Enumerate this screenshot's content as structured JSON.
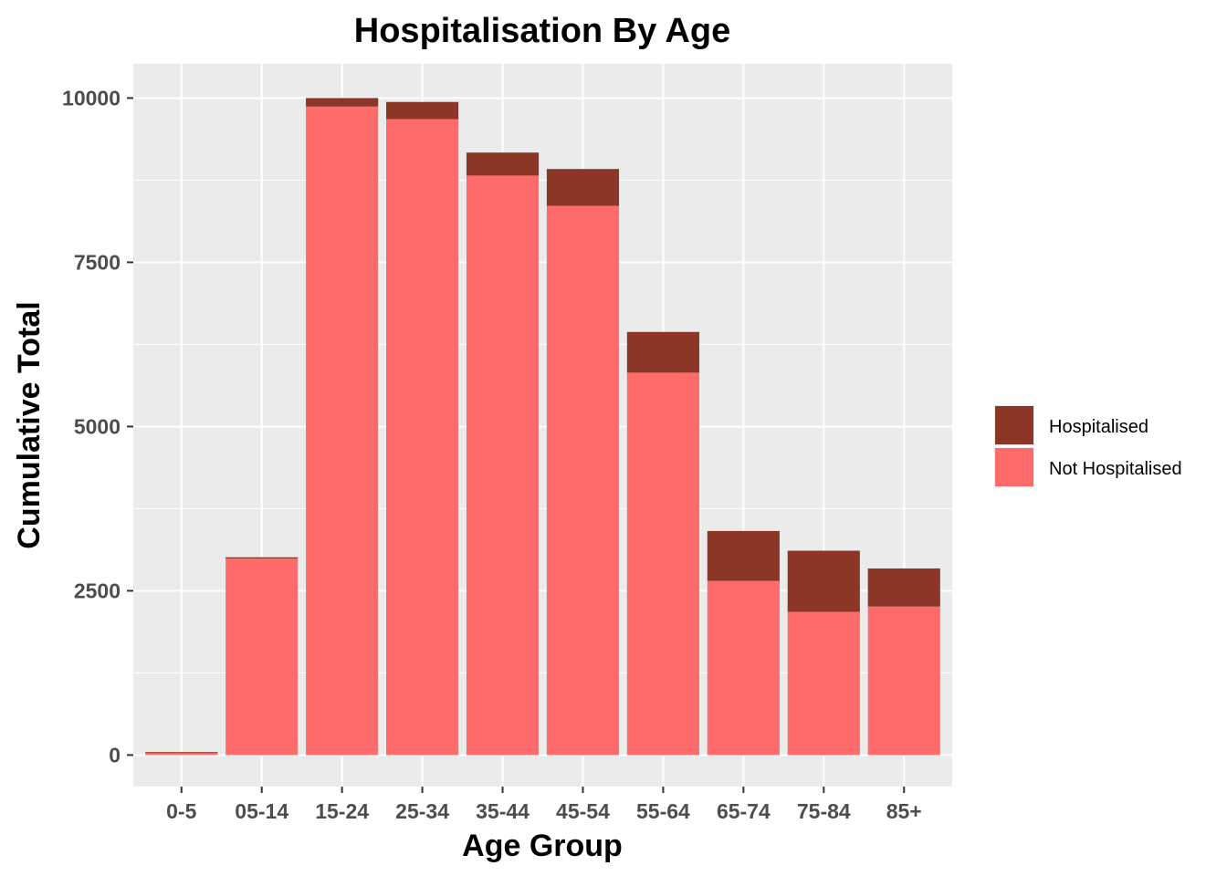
{
  "chart_data": {
    "type": "bar",
    "stacked": true,
    "title": "Hospitalisation By Age",
    "xlabel": "Age Group",
    "ylabel": "Cumulative Total",
    "categories": [
      "0-5",
      "05-14",
      "15-24",
      "25-34",
      "35-44",
      "45-54",
      "55-64",
      "65-74",
      "75-84",
      "85+"
    ],
    "series": [
      {
        "name": "Not Hospitalised",
        "color": "#ff6a6a",
        "values": [
          30,
          2990,
          9870,
          9680,
          8820,
          8360,
          5820,
          2650,
          2180,
          2260
        ]
      },
      {
        "name": "Hospitalised",
        "color": "#8b3626",
        "values": [
          15,
          20,
          130,
          260,
          350,
          560,
          620,
          760,
          930,
          580
        ]
      }
    ],
    "ylim": [
      -480,
      10520
    ],
    "yticks": [
      0,
      2500,
      5000,
      7500,
      10000
    ],
    "ytick_labels": [
      "0",
      "2500",
      "5000",
      "7500",
      "10000"
    ],
    "grid": true,
    "panel_background": "#ebebeb",
    "grid_color": "#ffffff",
    "legend_position": "right",
    "legend_order": [
      "Hospitalised",
      "Not Hospitalised"
    ]
  }
}
